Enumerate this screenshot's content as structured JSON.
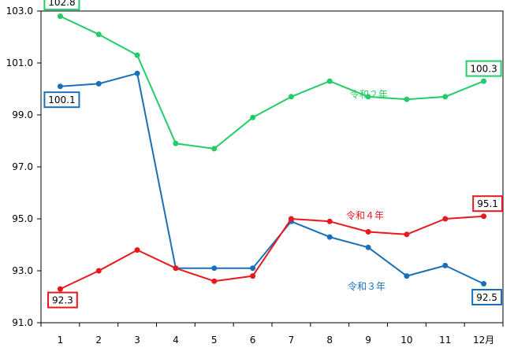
{
  "chart_data": {
    "type": "line",
    "categories": [
      "1",
      "2",
      "3",
      "4",
      "5",
      "6",
      "7",
      "8",
      "9",
      "10",
      "11",
      "12月"
    ],
    "ylim": [
      91.0,
      103.0
    ],
    "yticks": [
      "91.0",
      "93.0",
      "95.0",
      "97.0",
      "99.0",
      "101.0",
      "103.0"
    ],
    "grid": false,
    "series": [
      {
        "name": "令和２年",
        "color": "#22cc66",
        "values": [
          102.8,
          102.1,
          101.3,
          97.9,
          97.7,
          98.9,
          99.7,
          100.3,
          99.7,
          99.6,
          99.7,
          100.3
        ],
        "labels": [
          {
            "index": 0,
            "text": "102.8"
          },
          {
            "index": 11,
            "text": "100.3"
          }
        ]
      },
      {
        "name": "令和３年",
        "color": "#1a70b8",
        "values": [
          100.1,
          100.2,
          100.6,
          93.1,
          93.1,
          93.1,
          94.9,
          94.3,
          93.9,
          92.8,
          93.2,
          92.5
        ],
        "labels": [
          {
            "index": 0,
            "text": "100.1"
          },
          {
            "index": 11,
            "text": "92.5"
          }
        ]
      },
      {
        "name": "令和４年",
        "color": "#e8191e",
        "values": [
          92.3,
          93.0,
          93.8,
          93.1,
          92.6,
          92.8,
          95.0,
          94.9,
          94.5,
          94.4,
          95.0,
          95.1
        ],
        "labels": [
          {
            "index": 0,
            "text": "92.3"
          },
          {
            "index": 11,
            "text": "95.1"
          }
        ]
      }
    ]
  }
}
